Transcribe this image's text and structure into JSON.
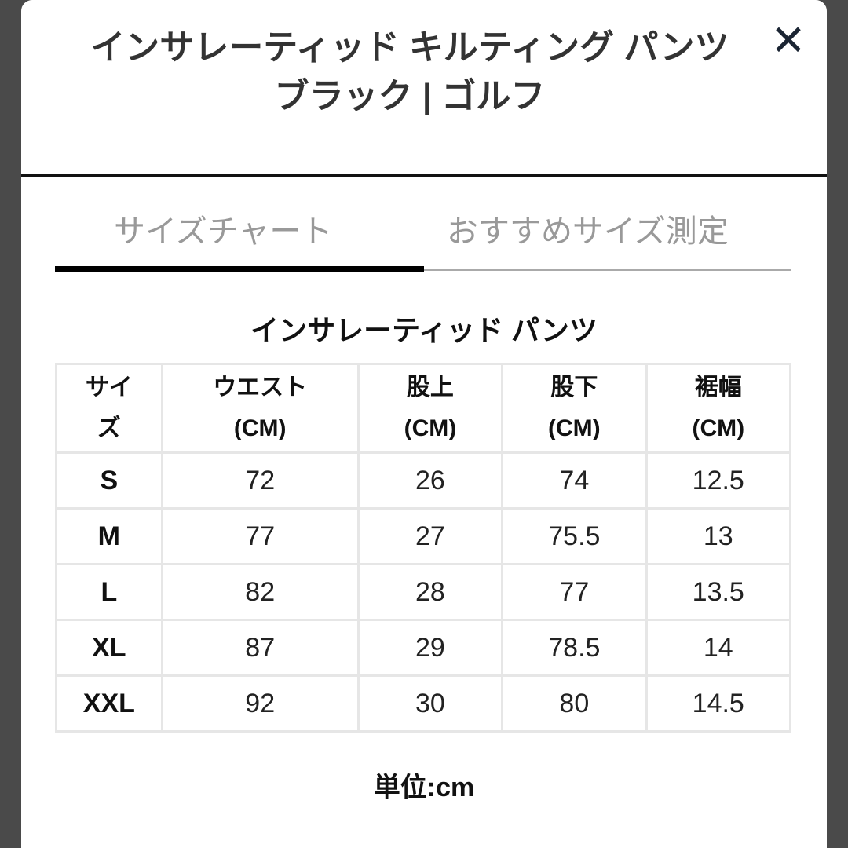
{
  "header": {
    "title": "インサレーティッド キルティング パンツ ブラック | ゴルフ",
    "close_icon": "close-x-icon"
  },
  "tabs": [
    {
      "label": "サイズチャート",
      "active": true
    },
    {
      "label": "おすすめサイズ測定",
      "active": false
    }
  ],
  "table": {
    "title": "インサレーティッド パンツ",
    "columns": [
      [
        "サイ",
        "ズ"
      ],
      [
        "ウエスト",
        "(CM)"
      ],
      [
        "股上",
        "(CM)"
      ],
      [
        "股下",
        "(CM)"
      ],
      [
        "裾幅",
        "(CM)"
      ]
    ],
    "rows": [
      [
        "S",
        "72",
        "26",
        "74",
        "12.5"
      ],
      [
        "M",
        "77",
        "27",
        "75.5",
        "13"
      ],
      [
        "L",
        "82",
        "28",
        "77",
        "13.5"
      ],
      [
        "XL",
        "87",
        "29",
        "78.5",
        "14"
      ],
      [
        "XXL",
        "92",
        "30",
        "80",
        "14.5"
      ]
    ],
    "unit": "単位:cm"
  }
}
